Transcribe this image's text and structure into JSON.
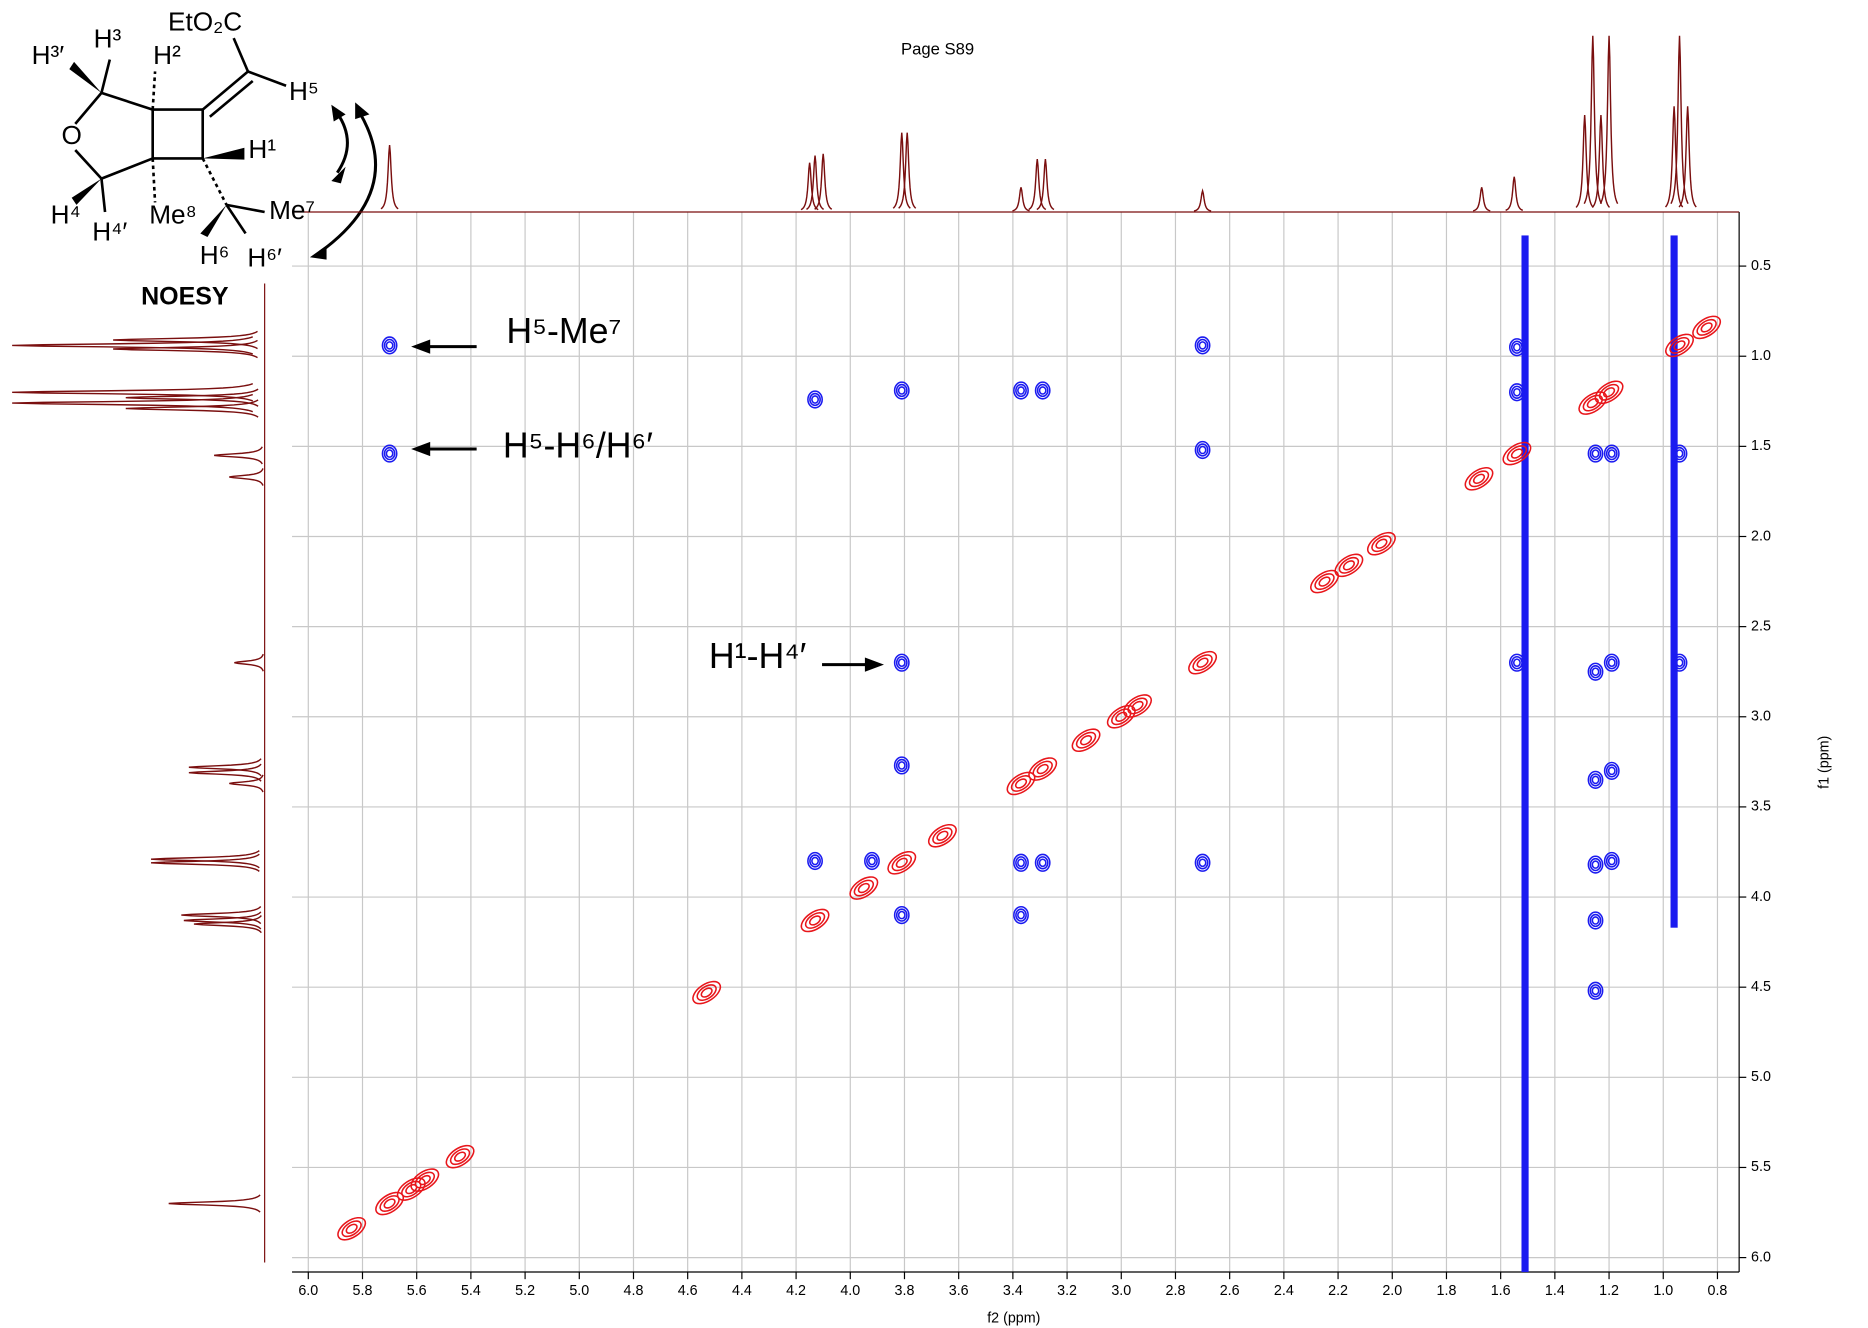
{
  "chart_data": {
    "type": "contour",
    "title": "Page S89",
    "x_label": "f2 (ppm)",
    "y_label": "f1 (ppm)",
    "xlim": [
      6.06,
      0.72
    ],
    "ylim": [
      0.2,
      6.08
    ],
    "xticks": [
      {
        "value": 6.0,
        "label": "6.0"
      },
      5.8,
      5.6,
      5.4,
      5.2,
      {
        "value": 5.0,
        "label": "5.0"
      },
      4.8,
      4.6,
      4.4,
      4.2,
      {
        "value": 4.0,
        "label": "4.0"
      },
      3.8,
      3.6,
      3.4,
      3.2,
      {
        "value": 3.0,
        "label": "3.0"
      },
      2.8,
      2.6,
      2.4,
      2.2,
      {
        "value": 2.0,
        "label": "2.0"
      },
      1.8,
      1.6,
      1.4,
      1.2,
      {
        "value": 1.0,
        "label": "1.0"
      },
      0.8
    ],
    "yticks": [
      0.5,
      {
        "value": 1.0,
        "label": "1.0"
      },
      1.5,
      {
        "value": 2.0,
        "label": "2.0"
      },
      2.5,
      {
        "value": 3.0,
        "label": "3.0"
      },
      3.5,
      {
        "value": 4.0,
        "label": "4.0"
      },
      4.5,
      {
        "value": 5.0,
        "label": "5.0"
      },
      5.5,
      {
        "value": 6.0,
        "label": "6.0"
      }
    ],
    "grid": true,
    "series": [
      {
        "color": "#e8161b",
        "x": [
          5.84,
          5.7,
          5.62,
          5.57,
          5.44,
          4.53,
          4.13,
          3.95,
          3.81,
          3.66,
          3.37,
          3.29,
          3.13,
          3.0,
          2.94,
          2.7,
          2.25,
          2.16,
          2.04,
          1.68,
          1.54,
          1.26,
          1.2,
          0.94,
          0.84
        ],
        "y": [
          5.84,
          5.7,
          5.62,
          5.57,
          5.44,
          4.53,
          4.13,
          3.95,
          3.81,
          3.66,
          3.37,
          3.29,
          3.13,
          3.0,
          2.94,
          2.7,
          2.25,
          2.16,
          2.04,
          1.68,
          1.54,
          1.26,
          1.2,
          0.94,
          0.84
        ]
      },
      {
        "color": "#1b1bf0",
        "x": [
          5.7,
          5.7,
          4.13,
          3.81,
          3.37,
          3.29,
          2.7,
          2.7,
          3.81,
          3.81,
          4.13,
          3.92,
          3.81,
          3.37,
          3.29,
          2.7,
          3.37,
          1.25,
          1.25,
          1.25,
          1.19,
          1.19,
          1.25,
          1.25,
          0.94,
          1.54,
          1.54,
          1.54,
          1.19,
          0.94,
          1.19,
          1.25
        ],
        "y": [
          0.94,
          1.54,
          1.24,
          1.19,
          1.19,
          1.19,
          0.94,
          1.52,
          2.7,
          3.27,
          3.8,
          3.8,
          4.1,
          3.81,
          3.81,
          3.81,
          4.1,
          4.13,
          4.52,
          2.75,
          3.3,
          3.8,
          3.35,
          3.82,
          1.54,
          0.95,
          1.2,
          2.7,
          2.7,
          2.7,
          1.54,
          1.54
        ]
      }
    ],
    "ridges": {
      "color": "#1b1bf0",
      "x": [
        1.51,
        0.96
      ],
      "y_from": [
        0.33,
        0.33
      ],
      "y_to": [
        6.08,
        4.17
      ]
    },
    "projection": {
      "color": "#7a0f0f",
      "x": [
        5.7,
        4.15,
        4.13,
        4.1,
        3.81,
        3.79,
        3.37,
        3.31,
        3.28,
        2.7,
        1.67,
        1.55,
        1.29,
        1.26,
        1.23,
        1.2,
        0.96,
        0.94,
        0.91
      ],
      "heights": [
        0.38,
        0.28,
        0.32,
        0.33,
        0.45,
        0.45,
        0.14,
        0.3,
        0.3,
        0.12,
        0.14,
        0.2,
        0.55,
        1.0,
        0.55,
        1.0,
        0.6,
        1.0,
        0.6
      ]
    },
    "annotations": [
      {
        "text": "H⁵-Me⁷",
        "x": 5.7,
        "y": 0.94
      },
      {
        "text": "H⁵-H⁶/H⁶′",
        "x": 5.7,
        "y": 1.54
      },
      {
        "text": "H¹-H⁴′",
        "x": 3.81,
        "y": 2.7
      }
    ],
    "structure": {
      "labels": [
        "EtO₂C",
        "H³′",
        "H³",
        "H²",
        "H⁵",
        "O",
        "H¹",
        "H⁴",
        "H⁴′",
        "Me⁸",
        "Me⁷",
        "H⁶",
        "H⁶′"
      ],
      "caption": "NOESY"
    }
  }
}
